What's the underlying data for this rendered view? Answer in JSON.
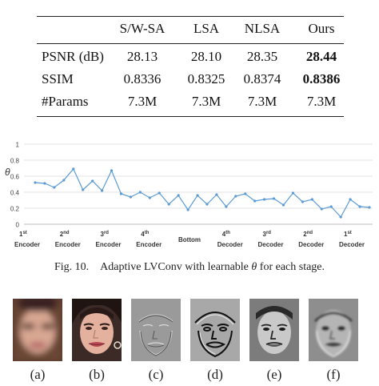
{
  "table": {
    "columns": [
      "",
      "S/W-SA",
      "LSA",
      "NLSA",
      "Ours"
    ],
    "rows": [
      {
        "label": "PSNR (dB)",
        "values": [
          "28.13",
          "28.10",
          "28.35",
          "28.44"
        ],
        "best_index": 3
      },
      {
        "label": "SSIM",
        "values": [
          "0.8336",
          "0.8325",
          "0.8374",
          "0.8386"
        ],
        "best_index": 3
      },
      {
        "label": "#Params",
        "values": [
          "7.3M",
          "7.3M",
          "7.3M",
          "7.3M"
        ],
        "best_index": null
      }
    ]
  },
  "chart_data": {
    "type": "line",
    "ylabel": "θ",
    "ylim": [
      0,
      1
    ],
    "yticks": [
      "0",
      "0.2",
      "0.4",
      "0.6",
      "0.8",
      "1"
    ],
    "grid": true,
    "line_color": "#5b9bd5",
    "values": [
      0.52,
      0.51,
      0.46,
      0.55,
      0.69,
      0.43,
      0.54,
      0.42,
      0.67,
      0.38,
      0.34,
      0.4,
      0.33,
      0.39,
      0.25,
      0.36,
      0.18,
      0.36,
      0.25,
      0.37,
      0.22,
      0.35,
      0.38,
      0.29,
      0.31,
      0.32,
      0.24,
      0.39,
      0.28,
      0.31,
      0.19,
      0.22,
      0.09,
      0.31,
      0.22,
      0.21
    ],
    "stage_labels": [
      {
        "num": "1",
        "sup": "st",
        "name": "Encoder"
      },
      {
        "num": "2",
        "sup": "nd",
        "name": "Encoder"
      },
      {
        "num": "3",
        "sup": "rd",
        "name": "Encoder"
      },
      {
        "num": "4",
        "sup": "th",
        "name": "Encoder"
      },
      {
        "num": "",
        "sup": "",
        "name": "Bottom"
      },
      {
        "num": "4",
        "sup": "th",
        "name": "Decoder"
      },
      {
        "num": "3",
        "sup": "rd",
        "name": "Decoder"
      },
      {
        "num": "2",
        "sup": "nd",
        "name": "Decoder"
      },
      {
        "num": "1",
        "sup": "st",
        "name": "Decoder"
      }
    ]
  },
  "caption": {
    "fig": "Fig. 10.",
    "text_pre": "Adaptive LVConv with learnable ",
    "theta": "θ",
    "text_post": " for each stage."
  },
  "panels": [
    "(a)",
    "(b)",
    "(c)",
    "(d)",
    "(e)",
    "(f)"
  ]
}
